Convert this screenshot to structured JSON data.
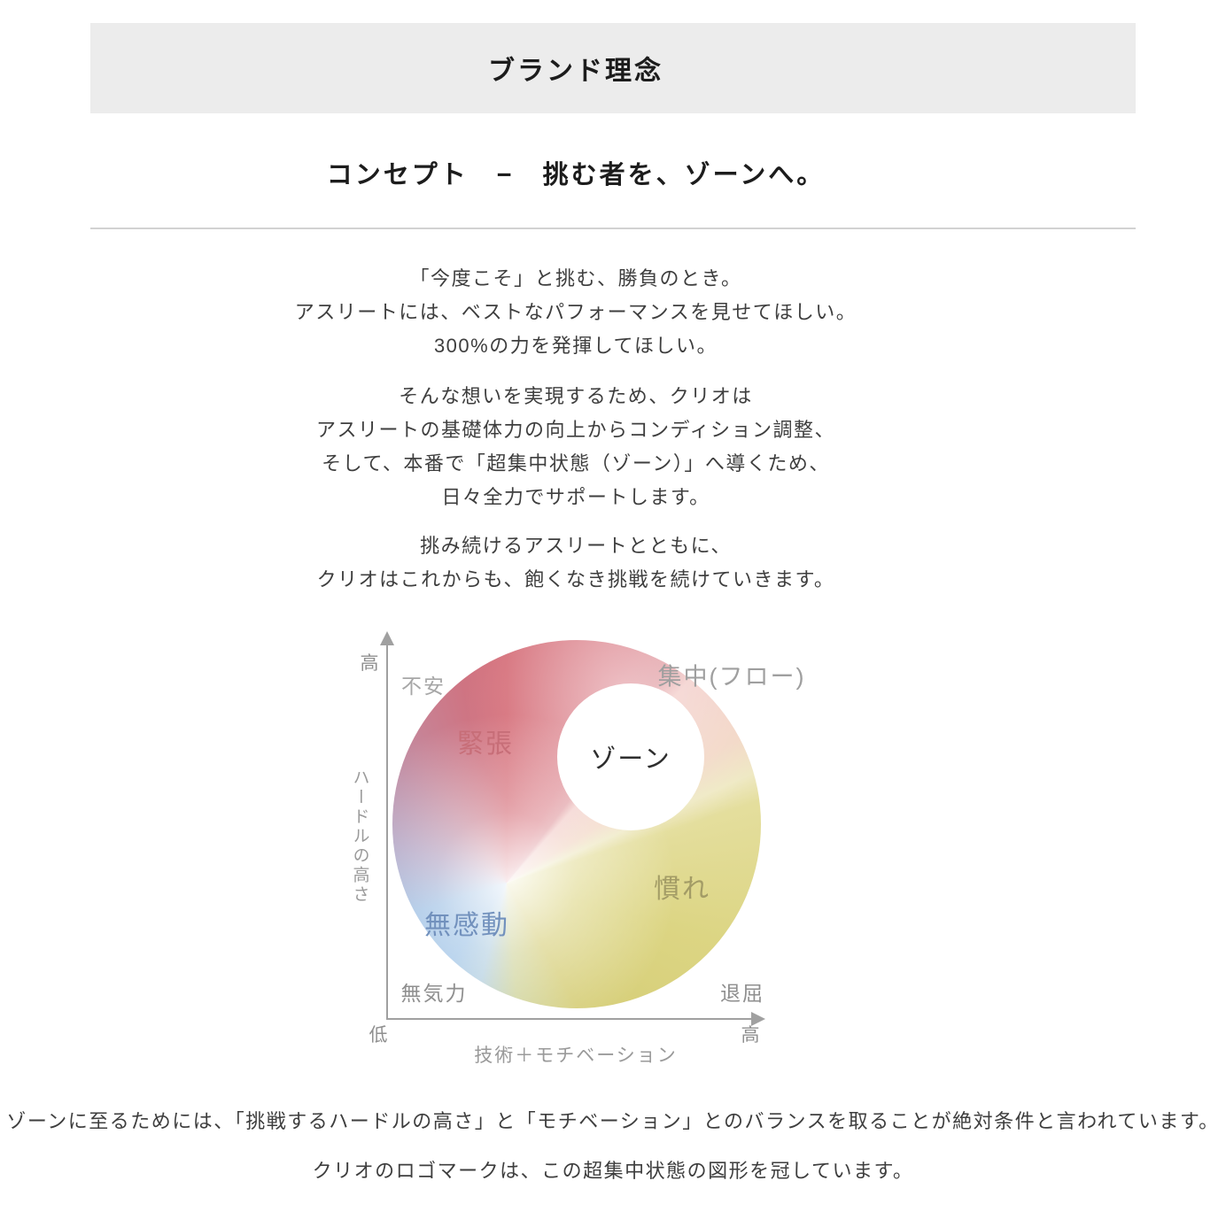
{
  "header": {
    "title": "ブランド理念",
    "background": "#ececec"
  },
  "concept": {
    "title": "コンセプト　−　挑む者を、ゾーンへ。",
    "paragraph1": {
      "line1": "「今度こそ」と挑む、勝負のとき。",
      "line2": "アスリートには、ベストなパフォーマンスを見せてほしい。",
      "line3": "300%の力を発揮してほしい。"
    },
    "paragraph2": {
      "line1": "そんな想いを実現するため、クリオは",
      "line2": "アスリートの基礎体力の向上からコンディション調整、",
      "line3": "そして、本番で「超集中状態（ゾーン）」へ導くため、",
      "line4": "日々全力でサポートします。"
    },
    "paragraph3": {
      "line1": "挑み続けるアスリートとともに、",
      "line2": "クリオはこれからも、飽くなき挑戦を続けていきます。"
    }
  },
  "diagram": {
    "type": "zone-model",
    "x_axis": {
      "label": "技術＋モチベーション",
      "high": "高"
    },
    "y_axis": {
      "label": "ハードルの高さ",
      "high": "高",
      "low": "低"
    },
    "zones": {
      "anxiety": "不安",
      "tension": "緊張",
      "zone": "ゾーン",
      "flow": "集中(フロー)",
      "habituation": "慣れ",
      "apathy": "無感動",
      "lethargy": "無気力",
      "boredom": "退屈"
    },
    "colors": {
      "tension_label": "#c76e78",
      "apathy_label": "#7291bd",
      "habituation_label": "#a39c66",
      "gray_label": "#9b9b9b",
      "zone_label": "#2e2e2e",
      "gradient_red": "#d46a75",
      "gradient_pink": "#f2cbc7",
      "gradient_yellow": "#dcd583",
      "gradient_blue": "#9ec3e6"
    }
  },
  "footer": {
    "line1": "ゾーンに至るためには、「挑戦するハードルの高さ」と「モチベーション」とのバランスを取ることが絶対条件と言われています。",
    "line2": "クリオのロゴマークは、この超集中状態の図形を冠しています。"
  }
}
